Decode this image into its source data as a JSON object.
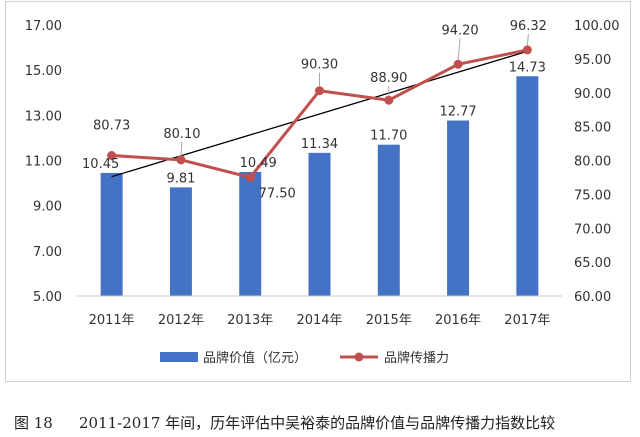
{
  "chart_data": {
    "type": "bar",
    "categories": [
      "2011年",
      "2012年",
      "2013年",
      "2014年",
      "2015年",
      "2016年",
      "2017年"
    ],
    "series": [
      {
        "name": "品牌价值（亿元）",
        "type": "bar",
        "axis": "left",
        "color": "#4472c4",
        "values": [
          10.45,
          9.81,
          10.49,
          11.34,
          11.7,
          12.77,
          14.73
        ],
        "labels": [
          "10.45",
          "9.81",
          "10.49",
          "11.34",
          "11.70",
          "12.77",
          "14.73"
        ]
      },
      {
        "name": "品牌传播力",
        "type": "line",
        "axis": "right",
        "color": "#c0504d",
        "values": [
          80.73,
          80.1,
          77.5,
          90.3,
          88.9,
          94.2,
          96.32
        ],
        "labels": [
          "80.73",
          "80.10",
          "77.50",
          "90.30",
          "88.90",
          "94.20",
          "96.32"
        ]
      }
    ],
    "trendline": {
      "type": "linear",
      "of": "品牌传播力",
      "color": "#000000"
    },
    "left_axis": {
      "ylim": [
        5,
        17
      ],
      "ticks": [
        "5.00",
        "7.00",
        "9.00",
        "11.00",
        "13.00",
        "15.00",
        "17.00"
      ],
      "tick_values": [
        5,
        7,
        9,
        11,
        13,
        15,
        17
      ]
    },
    "right_axis": {
      "ylim": [
        60,
        100
      ],
      "ticks": [
        "60.00",
        "65.00",
        "70.00",
        "75.00",
        "80.00",
        "85.00",
        "90.00",
        "95.00",
        "100.00"
      ],
      "tick_values": [
        60,
        65,
        70,
        75,
        80,
        85,
        90,
        95,
        100
      ]
    },
    "grid": false,
    "legend_position": "bottom"
  },
  "caption": {
    "number": "图 18",
    "text": "2011-2017 年间，历年评估中吴裕泰的品牌价值与品牌传播力指数比较"
  }
}
